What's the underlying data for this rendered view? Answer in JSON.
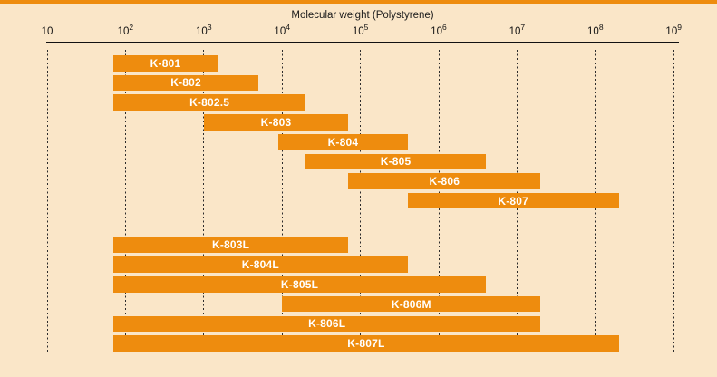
{
  "page": {
    "background_color": "#FAE6C8",
    "accent_bar_color": "#EE8C0E"
  },
  "chart_data": {
    "type": "bar",
    "variant": "horizontal-range-bars-log-x",
    "title": "Molecular weight (Polystyrene)",
    "x_axis": {
      "scale": "log10",
      "min": 10,
      "max": 1000000000,
      "tick_label_base": "10",
      "tick_exponents": [
        1,
        2,
        3,
        4,
        5,
        6,
        7,
        8,
        9
      ]
    },
    "grid": {
      "style": "vertical-dashed",
      "color": "#2b2b2b"
    },
    "legend": "none",
    "bar_color": "#EE8C0E",
    "bar_label_color": "#FFFFFF",
    "series": [
      {
        "label": "K-801",
        "group": 1,
        "mw_min": 70,
        "mw_max": 1500
      },
      {
        "label": "K-802",
        "group": 1,
        "mw_min": 70,
        "mw_max": 5000
      },
      {
        "label": "K-802.5",
        "group": 1,
        "mw_min": 70,
        "mw_max": 20000
      },
      {
        "label": "K-803",
        "group": 1,
        "mw_min": 1000,
        "mw_max": 70000
      },
      {
        "label": "K-804",
        "group": 1,
        "mw_min": 9000,
        "mw_max": 400000
      },
      {
        "label": "K-805",
        "group": 1,
        "mw_min": 20000,
        "mw_max": 4000000
      },
      {
        "label": "K-806",
        "group": 1,
        "mw_min": 70000,
        "mw_max": 20000000
      },
      {
        "label": "K-807",
        "group": 1,
        "mw_min": 400000,
        "mw_max": 200000000
      },
      {
        "label": "K-803L",
        "group": 2,
        "mw_min": 70,
        "mw_max": 70000
      },
      {
        "label": "K-804L",
        "group": 2,
        "mw_min": 70,
        "mw_max": 400000
      },
      {
        "label": "K-805L",
        "group": 2,
        "mw_min": 70,
        "mw_max": 4000000
      },
      {
        "label": "K-806M",
        "group": 2,
        "mw_min": 10000,
        "mw_max": 20000000
      },
      {
        "label": "K-806L",
        "group": 2,
        "mw_min": 70,
        "mw_max": 20000000
      },
      {
        "label": "K-807L",
        "group": 2,
        "mw_min": 70,
        "mw_max": 200000000
      }
    ]
  }
}
